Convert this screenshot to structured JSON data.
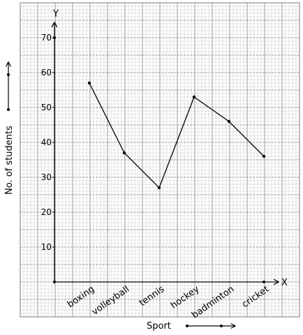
{
  "chart_data": {
    "type": "line",
    "x_axis_letter": "X",
    "y_axis_letter": "Y",
    "xlabel": "Sport",
    "ylabel": "No. of students",
    "categories": [
      "boxing",
      "volleyball",
      "tennis",
      "hockey",
      "badminton",
      "cricket"
    ],
    "values": [
      57,
      37,
      27,
      53,
      46,
      36
    ],
    "yticks": [
      10,
      20,
      30,
      40,
      50,
      60,
      70
    ],
    "ylim": [
      0,
      70
    ],
    "grid": true,
    "grid_style": "graph-paper",
    "colors": {
      "line": "#000000",
      "grid_minor": "#c8c8c8",
      "grid_major": "#7a7a7a"
    }
  }
}
